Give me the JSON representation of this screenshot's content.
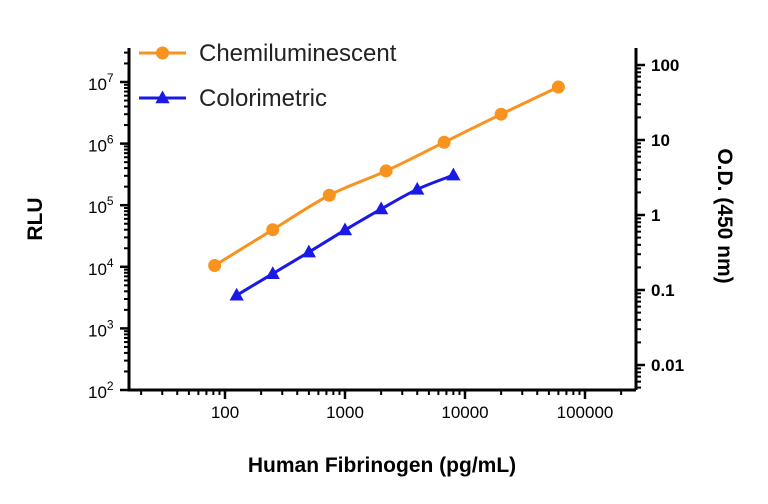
{
  "chart_data": {
    "type": "line",
    "title": "",
    "xlabel": "Human Fibrinogen (pg/mL)",
    "ylabel": "RLU",
    "y2label": "O.D. (450 nm)",
    "xscale": "log",
    "yscale": "log",
    "y2scale": "log",
    "xlim": [
      20,
      500000
    ],
    "ylim": [
      100,
      20000000
    ],
    "y2lim": [
      0.005,
      150
    ],
    "x_ticks": [
      "100",
      "1000",
      "10000",
      "100000"
    ],
    "y_tick_mantissa": "10",
    "y_tick_exponents": [
      "2",
      "3",
      "4",
      "5",
      "6",
      "7"
    ],
    "y2_ticks": [
      "0.01",
      "0.1",
      "1",
      "10",
      "100"
    ],
    "legend_position": "top-left",
    "grid": false,
    "series": [
      {
        "name": "Chemiluminescent",
        "axis": "left",
        "marker": "circle",
        "color": "#F7931E",
        "x": [
          82,
          250,
          740,
          2200,
          6700,
          20000,
          60000
        ],
        "y": [
          10500,
          40000,
          145000,
          360000,
          1050000,
          3000000,
          8300000
        ]
      },
      {
        "name": "Colorimetric",
        "axis": "right",
        "marker": "triangle",
        "color": "#1A1AE6",
        "x": [
          125,
          250,
          500,
          1000,
          2000,
          4000,
          8000
        ],
        "y": [
          0.085,
          0.165,
          0.32,
          0.63,
          1.2,
          2.2,
          3.4
        ]
      }
    ]
  }
}
